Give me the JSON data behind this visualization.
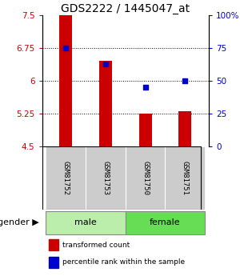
{
  "title": "GDS2222 / 1445047_at",
  "samples": [
    "GSM81752",
    "GSM81753",
    "GSM81750",
    "GSM81751"
  ],
  "bar_tops": [
    7.5,
    6.45,
    5.25,
    5.3
  ],
  "bar_bottom": 4.5,
  "percentiles": [
    75,
    63,
    45,
    50
  ],
  "gender": [
    "male",
    "male",
    "female",
    "female"
  ],
  "ylim_left": [
    4.5,
    7.5
  ],
  "yticks_left": [
    4.5,
    5.25,
    6.0,
    6.75,
    7.5
  ],
  "ylim_right": [
    0,
    100
  ],
  "yticks_right": [
    0,
    25,
    50,
    75,
    100
  ],
  "bar_color": "#cc0000",
  "dot_color": "#0000cc",
  "male_color": "#bbeeaa",
  "female_color": "#66dd55",
  "sample_bg_color": "#cccccc",
  "title_fontsize": 10,
  "tick_fontsize": 7.5,
  "sample_fontsize": 6.5,
  "gender_fontsize": 8,
  "legend_fontsize": 6.5
}
